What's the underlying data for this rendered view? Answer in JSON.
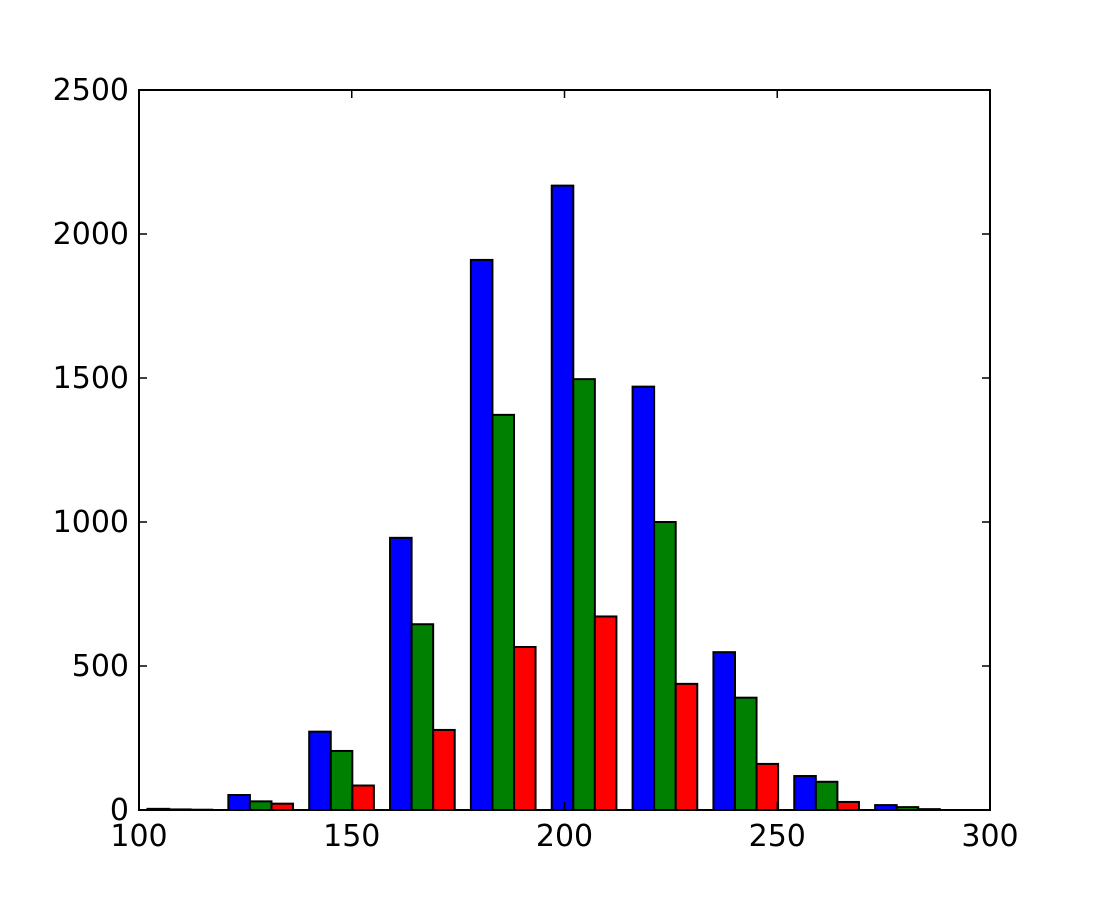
{
  "chart_data": {
    "type": "bar",
    "title": "",
    "xlabel": "",
    "ylabel": "",
    "xlim": [
      100,
      300
    ],
    "ylim": [
      0,
      2500
    ],
    "grid": false,
    "xticks": [
      100,
      150,
      200,
      250,
      300
    ],
    "yticks": [
      0,
      500,
      1000,
      1500,
      2000,
      2500
    ],
    "xtick_labels": [
      "100",
      "150",
      "200",
      "250",
      "300"
    ],
    "ytick_labels": [
      "0",
      "500",
      "1000",
      "1500",
      "2000",
      "2500"
    ],
    "bin_edges": [
      102,
      121,
      140,
      159,
      178,
      197,
      216,
      235,
      254,
      273,
      292
    ],
    "series": [
      {
        "color": "#0000ff",
        "values": [
          4,
          52,
          272,
          945,
          1910,
          2168,
          1470,
          548,
          118,
          17
        ]
      },
      {
        "color": "#008000",
        "values": [
          2,
          30,
          205,
          645,
          1372,
          1496,
          1000,
          390,
          98,
          10
        ]
      },
      {
        "color": "#ff0000",
        "values": [
          1,
          22,
          85,
          278,
          566,
          672,
          438,
          160,
          28,
          3
        ]
      }
    ]
  }
}
